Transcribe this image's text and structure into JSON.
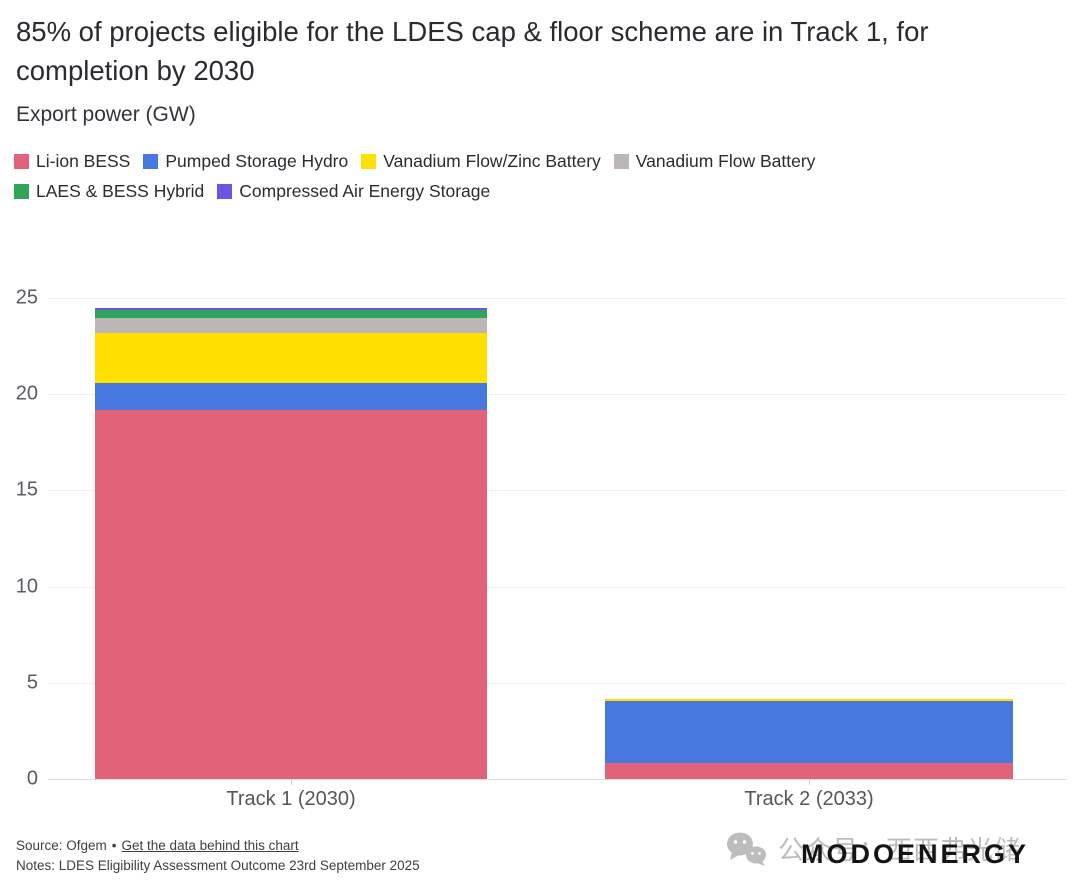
{
  "title": "85% of projects eligible for the LDES cap & floor scheme are in Track 1, for completion by 2030",
  "subtitle": "Export power (GW)",
  "chart_data": {
    "type": "bar",
    "stacked": true,
    "title": "85% of projects eligible for the LDES cap & floor scheme are in Track 1, for completion by 2030",
    "ylabel": "Export power (GW)",
    "xlabel": "",
    "categories": [
      "Track 1 (2030)",
      "Track 2 (2033)"
    ],
    "series": [
      {
        "name": "Li-ion BESS",
        "color": "#E0637A",
        "values": [
          19.2,
          0.85
        ]
      },
      {
        "name": "Pumped Storage Hydro",
        "color": "#4678E0",
        "values": [
          1.4,
          3.2
        ]
      },
      {
        "name": "Vanadium Flow/Zinc Battery",
        "color": "#FFE000",
        "values": [
          2.6,
          0.1
        ]
      },
      {
        "name": "Vanadium Flow Battery",
        "color": "#BDB6B6",
        "values": [
          0.75,
          0
        ]
      },
      {
        "name": "LAES & BESS Hybrid",
        "color": "#2FA45A",
        "values": [
          0.45,
          0
        ]
      },
      {
        "name": "Compressed Air Energy Storage",
        "color": "#6D55E2",
        "values": [
          0.1,
          0
        ]
      }
    ],
    "totals": {
      "track1": 24.5,
      "track2": 4.15
    },
    "ylim": [
      0,
      25
    ],
    "yticks": [
      0,
      5,
      10,
      15,
      20,
      25
    ],
    "grid": true,
    "legend_position": "top"
  },
  "footer": {
    "source_prefix": "Source: Ofgem",
    "separator": "•",
    "source_link": "Get the data behind this chart",
    "notes": "Notes: LDES Eligibility Assessment Outcome 23rd September 2025"
  },
  "watermark": {
    "wechat_text": "公众号：西西弗光储",
    "brand": "MODOENERGY"
  },
  "colors": {
    "background": "#ffffff",
    "title_text": "#2a2a31",
    "axis_text": "#5b5b63",
    "gridline": "#f0f0f0",
    "zero_line": "#dcdcdc",
    "footer_text": "#3e3e45",
    "watermark_gray": "#bdbdbd",
    "brand_black": "#141417"
  }
}
